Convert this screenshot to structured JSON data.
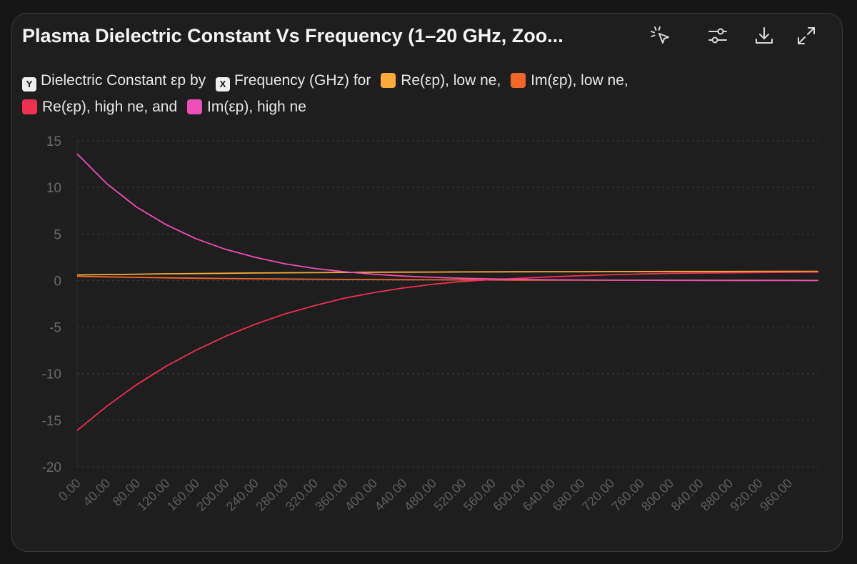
{
  "header": {
    "title": "Plasma Dielectric Constant Vs Frequency (1–20 GHz, Zoo..."
  },
  "toolbar": {
    "icons": [
      "select-pointer-icon",
      "sliders-icon",
      "download-icon",
      "expand-icon"
    ]
  },
  "legend": {
    "y_badge": "Y",
    "y_text": "Dielectric Constant εp by",
    "x_badge": "X",
    "x_text": "Frequency (GHz) for",
    "series_labels": [
      "Re(εp), low ne,",
      "Im(εp), low ne,",
      "Re(εp), high ne, and",
      "Im(εp), high ne"
    ]
  },
  "chart_data": {
    "type": "line",
    "x": [
      0,
      40,
      80,
      120,
      160,
      200,
      240,
      280,
      320,
      360,
      400,
      440,
      480,
      520,
      560,
      600,
      640,
      680,
      720,
      760,
      800,
      840,
      880,
      920,
      960,
      1000
    ],
    "x_tick_labels": [
      "0.00",
      "40.00",
      "80.00",
      "120.00",
      "160.00",
      "200.00",
      "240.00",
      "280.00",
      "320.00",
      "360.00",
      "400.00",
      "440.00",
      "480.00",
      "520.00",
      "560.00",
      "600.00",
      "640.00",
      "680.00",
      "720.00",
      "760.00",
      "800.00",
      "840.00",
      "880.00",
      "920.00",
      "960.00"
    ],
    "x_ticks": [
      0,
      40,
      80,
      120,
      160,
      200,
      240,
      280,
      320,
      360,
      400,
      440,
      480,
      520,
      560,
      600,
      640,
      680,
      720,
      760,
      800,
      840,
      880,
      920,
      960
    ],
    "xlim": [
      0,
      1000
    ],
    "y_ticks": [
      15,
      10,
      5,
      0,
      -5,
      -10,
      -15,
      -20
    ],
    "y_tick_labels": [
      "15",
      "10",
      "5",
      "0",
      "-5",
      "-10",
      "-15",
      "-20"
    ],
    "ylim": [
      -20,
      15
    ],
    "grid": "horizontal-dashed",
    "legend_position": "top",
    "series": [
      {
        "name": "Re(εp), low ne",
        "color": "#fbab3a",
        "values": [
          0.6,
          0.64,
          0.68,
          0.72,
          0.75,
          0.78,
          0.81,
          0.83,
          0.85,
          0.87,
          0.89,
          0.9,
          0.91,
          0.92,
          0.93,
          0.94,
          0.95,
          0.95,
          0.96,
          0.96,
          0.97,
          0.97,
          0.97,
          0.98,
          0.98,
          0.98
        ]
      },
      {
        "name": "Im(εp), low ne",
        "color": "#f2662a",
        "values": [
          0.45,
          0.39,
          0.34,
          0.29,
          0.25,
          0.22,
          0.19,
          0.16,
          0.14,
          0.12,
          0.1,
          0.09,
          0.08,
          0.07,
          0.06,
          0.05,
          0.04,
          0.04,
          0.03,
          0.03,
          0.03,
          0.02,
          0.02,
          0.02,
          0.02,
          0.01
        ]
      },
      {
        "name": "Re(εp), high ne",
        "color": "#ef3052",
        "values": [
          -16.1,
          -13.5,
          -11.2,
          -9.2,
          -7.5,
          -6.0,
          -4.7,
          -3.6,
          -2.7,
          -1.9,
          -1.3,
          -0.8,
          -0.4,
          -0.1,
          0.1,
          0.25,
          0.4,
          0.52,
          0.62,
          0.7,
          0.76,
          0.8,
          0.83,
          0.86,
          0.88,
          0.9
        ]
      },
      {
        "name": "Im(εp), high ne",
        "color": "#ee4fb6",
        "values": [
          13.6,
          10.4,
          7.9,
          6.0,
          4.5,
          3.35,
          2.5,
          1.8,
          1.3,
          0.95,
          0.68,
          0.48,
          0.34,
          0.24,
          0.17,
          0.12,
          0.08,
          0.06,
          0.04,
          0.03,
          0.02,
          0.015,
          0.01,
          0.007,
          0.005,
          0.004
        ]
      }
    ]
  }
}
